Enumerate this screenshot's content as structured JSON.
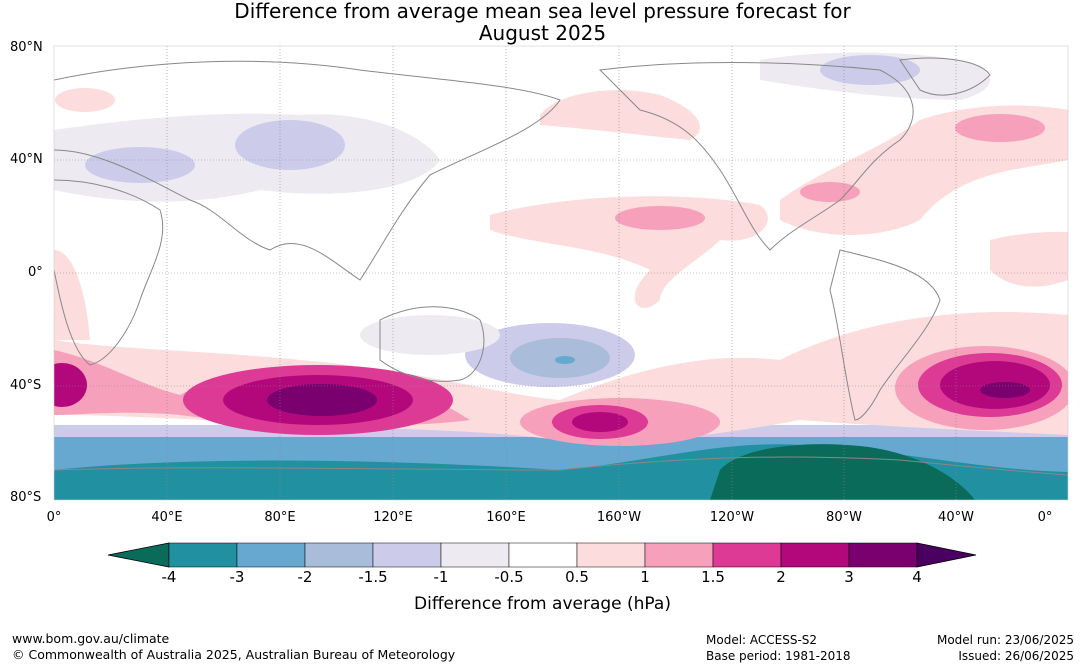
{
  "title": {
    "line1": "Difference from average mean sea level pressure forecast for",
    "line2": "August 2025"
  },
  "axes": {
    "lat_labels": [
      "80°N",
      "40°N",
      "0°",
      "40°S",
      "80°S"
    ],
    "lon_labels": [
      "0°",
      "40°E",
      "80°E",
      "120°E",
      "160°E",
      "160°W",
      "120°W",
      "80°W",
      "40°W",
      "0°"
    ]
  },
  "colorbar": {
    "ticks": [
      "-4",
      "-3",
      "-2",
      "-1.5",
      "-1",
      "-0.5",
      "0.5",
      "1",
      "1.5",
      "2",
      "3",
      "4"
    ],
    "colors": [
      "#0a6b5a",
      "#2190a0",
      "#67a8d0",
      "#a9bcd9",
      "#ccccea",
      "#eeeaf2",
      "#ffffff",
      "#fcdcdc",
      "#f7a0bc",
      "#dc3a94",
      "#b3087c",
      "#7a0070",
      "#4a0060"
    ],
    "label": "Difference from average (hPa)"
  },
  "footer": {
    "url": "www.bom.gov.au/climate",
    "copyright": "© Commonwealth of Australia 2025, Australian Bureau of Meteorology",
    "model": "Model: ACCESS-S2",
    "base_period": "Base period: 1981-2018",
    "model_run": "Model run: 23/06/2025",
    "issued": "Issued: 26/06/2025"
  }
}
